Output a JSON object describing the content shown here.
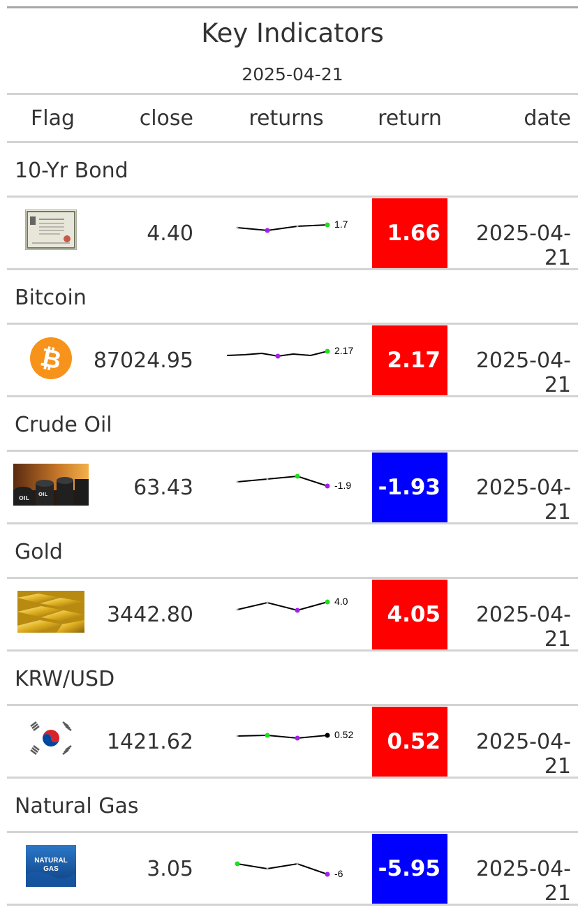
{
  "title": "Key Indicators",
  "subtitle": "2025-04-21",
  "columns": {
    "flag": "Flag",
    "close": "close",
    "returns": "returns",
    "return": "return",
    "date": "date"
  },
  "colors": {
    "positive": "#ff0000",
    "negative": "#0000ff",
    "spark_high": "#22dd22",
    "spark_low": "#a020f0"
  },
  "rows": [
    {
      "group": "10-Yr Bond",
      "icon": "bond-certificate-icon",
      "close": "4.40",
      "spark_end_label": "1.7",
      "return": "1.66",
      "direction": "up",
      "date": "2025-04-21"
    },
    {
      "group": "Bitcoin",
      "icon": "bitcoin-icon",
      "close": "87024.95",
      "spark_end_label": "2.17",
      "return": "2.17",
      "direction": "up",
      "date": "2025-04-21"
    },
    {
      "group": "Crude Oil",
      "icon": "crude-oil-barrels-icon",
      "close": "63.43",
      "spark_end_label": "-1.9",
      "return": "-1.93",
      "direction": "down",
      "date": "2025-04-21"
    },
    {
      "group": "Gold",
      "icon": "gold-bars-icon",
      "close": "3442.80",
      "spark_end_label": "4.0",
      "return": "4.05",
      "direction": "up",
      "date": "2025-04-21"
    },
    {
      "group": "KRW/USD",
      "icon": "korea-flag-icon",
      "close": "1421.62",
      "spark_end_label": "0.52",
      "return": "0.52",
      "direction": "up",
      "date": "2025-04-21"
    },
    {
      "group": "Natural Gas",
      "icon": "natural-gas-icon",
      "icon_text_1": "NATURAL",
      "icon_text_2": "GAS",
      "close": "3.05",
      "spark_end_label": "-6",
      "return": "-5.95",
      "direction": "down",
      "date": "2025-04-21"
    }
  ]
}
